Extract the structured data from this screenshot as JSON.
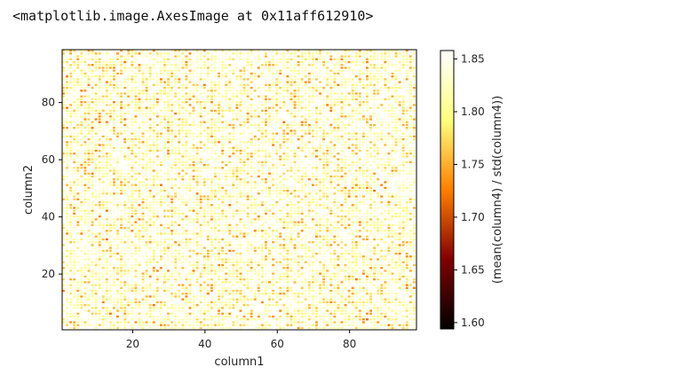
{
  "output": {
    "repr_text": "<matplotlib.image.AxesImage at 0x11aff612910>"
  },
  "chart_data": {
    "type": "heatmap",
    "xlabel": "column1",
    "ylabel": "column2",
    "colorbar_label": "(mean(column4) / std(column4))",
    "colormap": "afmhot",
    "x_range": [
      1,
      98
    ],
    "y_range": [
      1,
      98
    ],
    "x_ticks": [
      20,
      40,
      60,
      80
    ],
    "y_ticks": [
      20,
      40,
      60,
      80
    ],
    "value_range": [
      1.594,
      1.858
    ],
    "colorbar_ticks": [
      1.6,
      1.65,
      1.7,
      1.75,
      1.8,
      1.85
    ],
    "pattern": "fine speckle of values across a 98×98 grid, mostly light yellow/orange with scattered darker red/brown cells"
  }
}
